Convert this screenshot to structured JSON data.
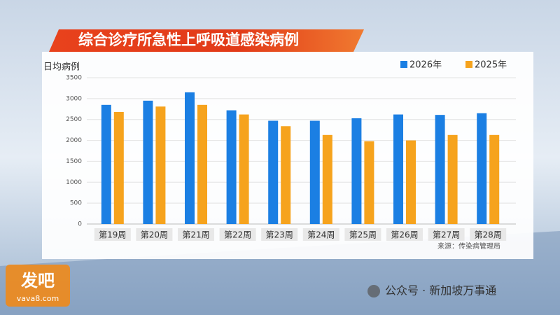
{
  "chart_data": {
    "type": "bar",
    "title": "综合诊疗所急性上呼吸道感染病例",
    "ylabel": "日均病例",
    "categories": [
      "第19周",
      "第20周",
      "第21周",
      "第22周",
      "第23周",
      "第24周",
      "第25周",
      "第26周",
      "第27周",
      "第28周"
    ],
    "series": [
      {
        "name": "2026年",
        "color": "#1b7fe3",
        "values": [
          2850,
          2950,
          3150,
          2720,
          2470,
          2470,
          2530,
          2620,
          2610,
          2650
        ]
      },
      {
        "name": "2025年",
        "color": "#f6a31d",
        "values": [
          2680,
          2810,
          2850,
          2620,
          2340,
          2130,
          1980,
          2000,
          2130,
          2130
        ]
      }
    ],
    "ylim": [
      0,
      3500
    ],
    "yticks": [
      0,
      500,
      1000,
      1500,
      2000,
      2500,
      3000,
      3500
    ],
    "grid": true,
    "source": "来源：传染病管理局"
  },
  "watermark": {
    "logo": "发吧",
    "site": "vava8.com",
    "account": "公众号 · 新加坡万事通"
  }
}
